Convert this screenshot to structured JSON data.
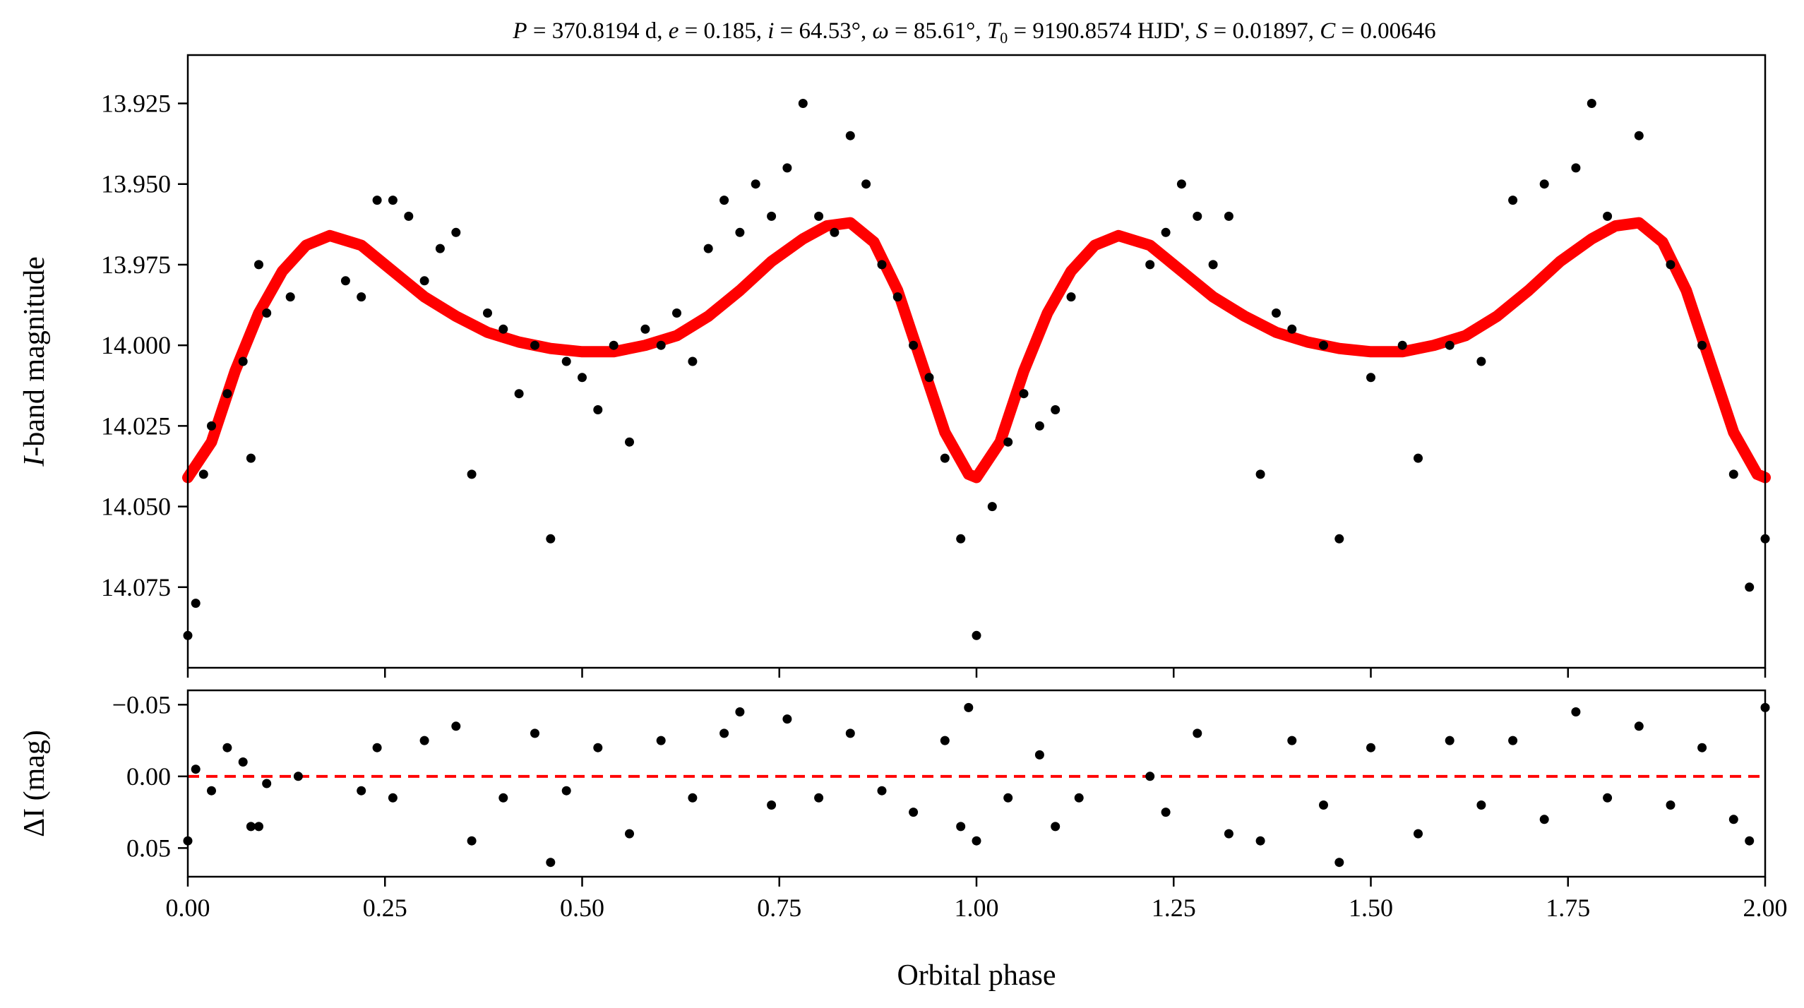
{
  "chart_data": [
    {
      "type": "scatter",
      "panel": "light-curve",
      "title": "P = 370.8194 d, e = 0.185, i = 64.53°, ω = 85.61°, T0 = 9190.8574 HJD', S = 0.01897, C = 0.00646",
      "title_parts": {
        "P": "370.8194 d",
        "e": "0.185",
        "i": "64.53°",
        "omega": "85.61°",
        "T0": "9190.8574 HJD'",
        "S": "0.01897",
        "C": "0.00646"
      },
      "xlabel": "Orbital phase",
      "ylabel_italic": "I",
      "ylabel_rest": "-band magnitude",
      "xlim": [
        0.0,
        2.0
      ],
      "ylim": [
        14.1,
        13.91
      ],
      "y_inverted": true,
      "yticks": [
        "13.925",
        "13.950",
        "13.975",
        "14.000",
        "14.025",
        "14.050",
        "14.075"
      ],
      "ytick_values": [
        13.925,
        13.95,
        13.975,
        14.0,
        14.025,
        14.05,
        14.075
      ],
      "series": [
        {
          "kind": "observations",
          "color": "#000000",
          "note_points": "observed I-band magnitudes, phase-folded and repeated over two cycles",
          "points": [
            [
              0.0,
              14.09
            ],
            [
              0.01,
              14.08
            ],
            [
              0.02,
              14.04
            ],
            [
              0.03,
              14.025
            ],
            [
              0.05,
              14.015
            ],
            [
              0.07,
              14.005
            ],
            [
              0.08,
              14.035
            ],
            [
              0.09,
              13.975
            ],
            [
              0.1,
              13.99
            ],
            [
              0.13,
              13.985
            ],
            [
              0.2,
              13.98
            ],
            [
              0.22,
              13.985
            ],
            [
              0.24,
              13.955
            ],
            [
              0.26,
              13.955
            ],
            [
              0.28,
              13.96
            ],
            [
              0.3,
              13.98
            ],
            [
              0.32,
              13.97
            ],
            [
              0.34,
              13.965
            ],
            [
              0.36,
              14.04
            ],
            [
              0.38,
              13.99
            ],
            [
              0.4,
              13.995
            ],
            [
              0.42,
              14.015
            ],
            [
              0.44,
              14.0
            ],
            [
              0.46,
              14.06
            ],
            [
              0.48,
              14.005
            ],
            [
              0.5,
              14.01
            ],
            [
              0.52,
              14.02
            ],
            [
              0.54,
              14.0
            ],
            [
              0.56,
              14.03
            ],
            [
              0.58,
              13.995
            ],
            [
              0.6,
              14.0
            ],
            [
              0.62,
              13.99
            ],
            [
              0.64,
              14.005
            ],
            [
              0.66,
              13.97
            ],
            [
              0.68,
              13.955
            ],
            [
              0.7,
              13.965
            ],
            [
              0.72,
              13.95
            ],
            [
              0.74,
              13.96
            ],
            [
              0.76,
              13.945
            ],
            [
              0.78,
              13.925
            ],
            [
              0.8,
              13.96
            ],
            [
              0.82,
              13.965
            ],
            [
              0.84,
              13.935
            ],
            [
              0.86,
              13.95
            ],
            [
              0.88,
              13.975
            ],
            [
              0.9,
              13.985
            ],
            [
              0.92,
              14.0
            ],
            [
              0.94,
              14.01
            ],
            [
              0.96,
              14.035
            ],
            [
              0.98,
              14.06
            ],
            [
              1.0,
              14.09
            ],
            [
              1.02,
              14.05
            ],
            [
              1.04,
              14.03
            ],
            [
              1.06,
              14.015
            ],
            [
              1.08,
              14.025
            ],
            [
              1.1,
              14.02
            ],
            [
              1.12,
              13.985
            ],
            [
              1.22,
              13.975
            ],
            [
              1.24,
              13.965
            ],
            [
              1.26,
              13.95
            ],
            [
              1.28,
              13.96
            ],
            [
              1.3,
              13.975
            ],
            [
              1.32,
              13.96
            ],
            [
              1.36,
              14.04
            ],
            [
              1.38,
              13.99
            ],
            [
              1.4,
              13.995
            ],
            [
              1.44,
              14.0
            ],
            [
              1.46,
              14.06
            ],
            [
              1.5,
              14.01
            ],
            [
              1.54,
              14.0
            ],
            [
              1.56,
              14.035
            ],
            [
              1.6,
              14.0
            ],
            [
              1.64,
              14.005
            ],
            [
              1.68,
              13.955
            ],
            [
              1.72,
              13.95
            ],
            [
              1.76,
              13.945
            ],
            [
              1.78,
              13.925
            ],
            [
              1.8,
              13.96
            ],
            [
              1.84,
              13.935
            ],
            [
              1.88,
              13.975
            ],
            [
              1.92,
              14.0
            ],
            [
              1.96,
              14.04
            ],
            [
              1.98,
              14.075
            ],
            [
              2.0,
              14.06
            ]
          ]
        },
        {
          "kind": "model",
          "color": "#ff0000",
          "points": [
            [
              0.0,
              14.041
            ],
            [
              0.03,
              14.03
            ],
            [
              0.06,
              14.008
            ],
            [
              0.09,
              13.99
            ],
            [
              0.12,
              13.977
            ],
            [
              0.15,
              13.969
            ],
            [
              0.18,
              13.966
            ],
            [
              0.22,
              13.969
            ],
            [
              0.26,
              13.977
            ],
            [
              0.3,
              13.985
            ],
            [
              0.34,
              13.991
            ],
            [
              0.38,
              13.996
            ],
            [
              0.42,
              13.999
            ],
            [
              0.46,
              14.001
            ],
            [
              0.5,
              14.002
            ],
            [
              0.54,
              14.002
            ],
            [
              0.58,
              14.0
            ],
            [
              0.62,
              13.997
            ],
            [
              0.66,
              13.991
            ],
            [
              0.7,
              13.983
            ],
            [
              0.74,
              13.974
            ],
            [
              0.78,
              13.967
            ],
            [
              0.81,
              13.963
            ],
            [
              0.84,
              13.962
            ],
            [
              0.87,
              13.968
            ],
            [
              0.9,
              13.983
            ],
            [
              0.93,
              14.005
            ],
            [
              0.96,
              14.027
            ],
            [
              0.99,
              14.04
            ],
            [
              1.0,
              14.041
            ],
            [
              1.03,
              14.03
            ],
            [
              1.06,
              14.008
            ],
            [
              1.09,
              13.99
            ],
            [
              1.12,
              13.977
            ],
            [
              1.15,
              13.969
            ],
            [
              1.18,
              13.966
            ],
            [
              1.22,
              13.969
            ],
            [
              1.26,
              13.977
            ],
            [
              1.3,
              13.985
            ],
            [
              1.34,
              13.991
            ],
            [
              1.38,
              13.996
            ],
            [
              1.42,
              13.999
            ],
            [
              1.46,
              14.001
            ],
            [
              1.5,
              14.002
            ],
            [
              1.54,
              14.002
            ],
            [
              1.58,
              14.0
            ],
            [
              1.62,
              13.997
            ],
            [
              1.66,
              13.991
            ],
            [
              1.7,
              13.983
            ],
            [
              1.74,
              13.974
            ],
            [
              1.78,
              13.967
            ],
            [
              1.81,
              13.963
            ],
            [
              1.84,
              13.962
            ],
            [
              1.87,
              13.968
            ],
            [
              1.9,
              13.983
            ],
            [
              1.93,
              14.005
            ],
            [
              1.96,
              14.027
            ],
            [
              1.99,
              14.04
            ],
            [
              2.0,
              14.041
            ]
          ]
        }
      ]
    },
    {
      "type": "scatter",
      "panel": "residuals",
      "xlabel": "Orbital phase",
      "ylabel": "ΔI (mag)",
      "xlim": [
        0.0,
        2.0
      ],
      "ylim": [
        0.07,
        -0.06
      ],
      "y_inverted": true,
      "xticks": [
        "0.00",
        "0.25",
        "0.50",
        "0.75",
        "1.00",
        "1.25",
        "1.50",
        "1.75",
        "2.00"
      ],
      "xtick_values": [
        0.0,
        0.25,
        0.5,
        0.75,
        1.0,
        1.25,
        1.5,
        1.75,
        2.0
      ],
      "yticks": [
        "−0.05",
        "0.00",
        "0.05"
      ],
      "ytick_values": [
        -0.05,
        0.0,
        0.05
      ],
      "reference_line": {
        "y": 0.0,
        "color": "#ff0000",
        "style": "dashed"
      },
      "series": [
        {
          "kind": "residuals",
          "color": "#000000",
          "points": [
            [
              0.0,
              0.045
            ],
            [
              0.01,
              -0.005
            ],
            [
              0.03,
              0.01
            ],
            [
              0.05,
              -0.02
            ],
            [
              0.07,
              -0.01
            ],
            [
              0.08,
              0.035
            ],
            [
              0.09,
              0.035
            ],
            [
              0.1,
              0.005
            ],
            [
              0.14,
              0.0
            ],
            [
              0.22,
              0.01
            ],
            [
              0.24,
              -0.02
            ],
            [
              0.26,
              0.015
            ],
            [
              0.3,
              -0.025
            ],
            [
              0.34,
              -0.035
            ],
            [
              0.36,
              0.045
            ],
            [
              0.4,
              0.015
            ],
            [
              0.44,
              -0.03
            ],
            [
              0.46,
              0.06
            ],
            [
              0.48,
              0.01
            ],
            [
              0.52,
              -0.02
            ],
            [
              0.56,
              0.04
            ],
            [
              0.6,
              -0.025
            ],
            [
              0.64,
              0.015
            ],
            [
              0.68,
              -0.03
            ],
            [
              0.7,
              -0.045
            ],
            [
              0.74,
              0.02
            ],
            [
              0.76,
              -0.04
            ],
            [
              0.8,
              0.015
            ],
            [
              0.84,
              -0.03
            ],
            [
              0.88,
              0.01
            ],
            [
              0.92,
              0.025
            ],
            [
              0.96,
              -0.025
            ],
            [
              0.98,
              0.035
            ],
            [
              0.99,
              -0.048
            ],
            [
              1.0,
              0.045
            ],
            [
              1.04,
              0.015
            ],
            [
              1.08,
              -0.015
            ],
            [
              1.1,
              0.035
            ],
            [
              1.13,
              0.015
            ],
            [
              1.22,
              0.0
            ],
            [
              1.24,
              0.025
            ],
            [
              1.28,
              -0.03
            ],
            [
              1.32,
              0.04
            ],
            [
              1.36,
              0.045
            ],
            [
              1.4,
              -0.025
            ],
            [
              1.44,
              0.02
            ],
            [
              1.46,
              0.06
            ],
            [
              1.5,
              -0.02
            ],
            [
              1.56,
              0.04
            ],
            [
              1.6,
              -0.025
            ],
            [
              1.64,
              0.02
            ],
            [
              1.68,
              -0.025
            ],
            [
              1.72,
              0.03
            ],
            [
              1.76,
              -0.045
            ],
            [
              1.8,
              0.015
            ],
            [
              1.84,
              -0.035
            ],
            [
              1.88,
              0.02
            ],
            [
              1.92,
              -0.02
            ],
            [
              1.96,
              0.03
            ],
            [
              1.98,
              0.045
            ],
            [
              2.0,
              -0.048
            ]
          ]
        }
      ]
    }
  ]
}
